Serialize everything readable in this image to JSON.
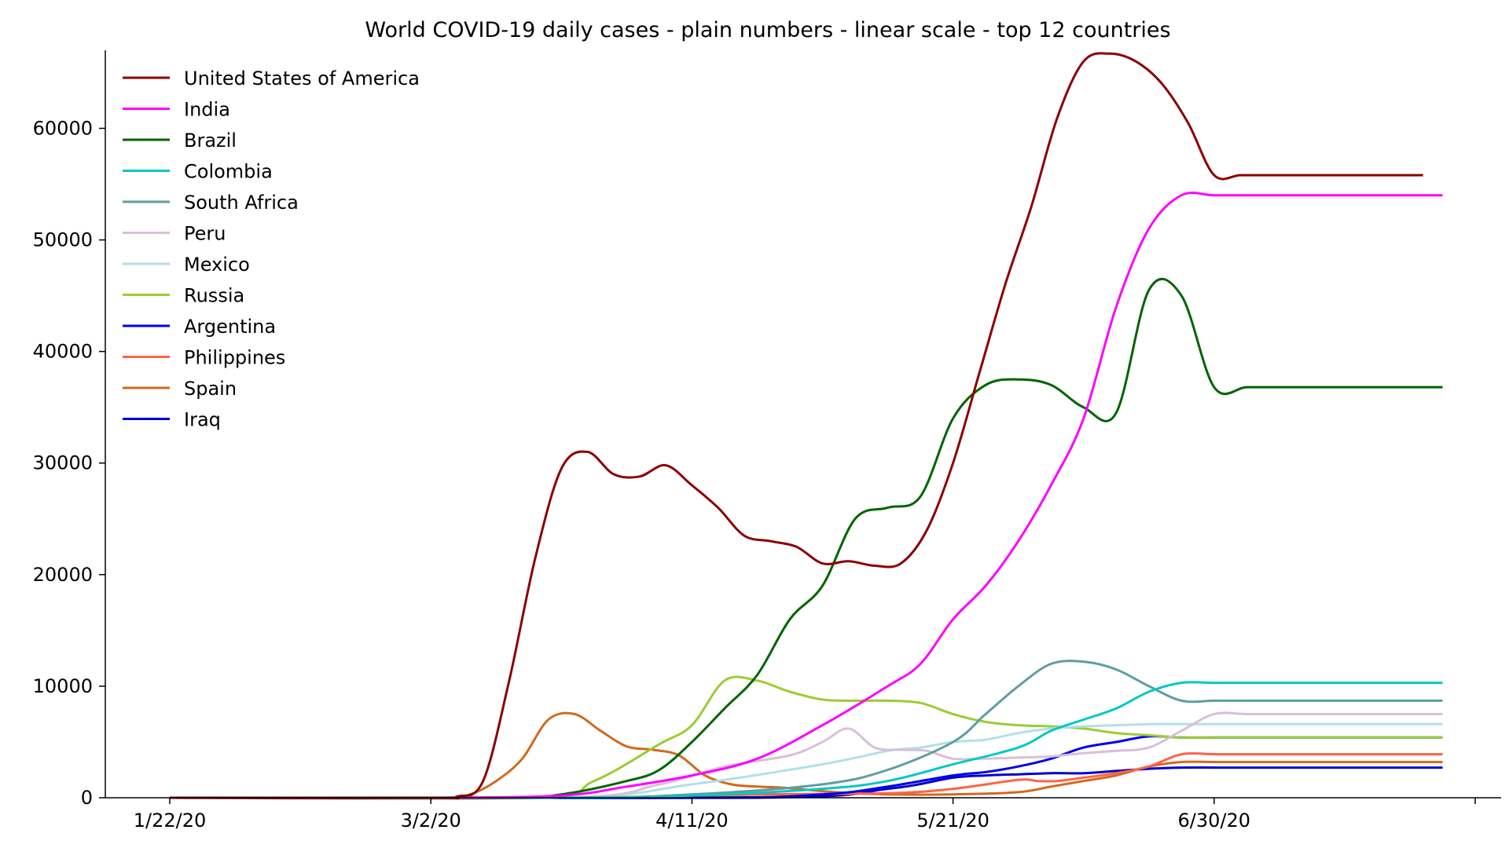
{
  "chart_data": {
    "type": "line",
    "title": "World COVID-19 daily cases - plain numbers - linear scale - top 12 countries",
    "xlabel": "",
    "ylabel": "",
    "x_start": "2020-01-22",
    "x_tick_labels": [
      "1/22/20",
      "3/2/20",
      "4/11/20",
      "5/21/20",
      "6/30/20"
    ],
    "xlim": [
      0,
      200
    ],
    "ylim": [
      0,
      67000
    ],
    "y_ticks": [
      0,
      10000,
      20000,
      30000,
      40000,
      50000,
      60000
    ],
    "legend_position": "top-left",
    "grid": false,
    "series": [
      {
        "name": "United States of America",
        "color": "#8b0000",
        "x": [
          0,
          40,
          44,
          48,
          52,
          56,
          60,
          64,
          68,
          72,
          76,
          80,
          84,
          88,
          92,
          96,
          100,
          104,
          108,
          112,
          116,
          120,
          124,
          128,
          132,
          136,
          140,
          144,
          148,
          152,
          156,
          160,
          164,
          168,
          172,
          176,
          180,
          184,
          188,
          192,
          196
        ],
        "y": [
          0,
          0,
          100,
          1500,
          10500,
          21500,
          29500,
          31000,
          29000,
          28800,
          29800,
          28000,
          26000,
          23500,
          23000,
          22500,
          21000,
          21200,
          20800,
          21000,
          24000,
          30000,
          38000,
          46000,
          53000,
          61000,
          66000,
          66700,
          66000,
          64000,
          60500,
          55800,
          55800,
          55800,
          55800,
          55800,
          55800,
          55800,
          55800,
          55800,
          55800
        ]
      },
      {
        "name": "India",
        "color": "#ff00ff",
        "x": [
          0,
          40,
          60,
          70,
          80,
          90,
          100,
          110,
          115,
          120,
          125,
          130,
          135,
          140,
          145,
          150,
          155,
          160,
          165,
          170,
          175,
          180,
          185,
          190,
          195,
          197
        ],
        "y": [
          0,
          0,
          200,
          1000,
          2000,
          3500,
          6500,
          10000,
          12000,
          16000,
          19000,
          23000,
          28000,
          34000,
          44000,
          51000,
          54000,
          54000,
          54000,
          54000,
          54000,
          54000,
          54000,
          54000,
          54000,
          54000
        ]
      },
      {
        "name": "Brazil",
        "color": "#006400",
        "x": [
          0,
          50,
          60,
          70,
          75,
          80,
          85,
          90,
          95,
          100,
          105,
          110,
          115,
          120,
          125,
          130,
          135,
          140,
          145,
          150,
          155,
          160,
          165,
          170,
          175,
          180,
          185,
          190,
          195
        ],
        "y": [
          0,
          0,
          300,
          1500,
          2500,
          5000,
          8000,
          11000,
          16000,
          19000,
          25000,
          26000,
          27000,
          34000,
          37000,
          37500,
          37000,
          35000,
          34500,
          45500,
          45000,
          36800,
          36800,
          36800,
          36800,
          36800,
          36800,
          36800,
          36800
        ]
      },
      {
        "name": "Colombia",
        "color": "#00c8c8",
        "x": [
          0,
          60,
          80,
          100,
          110,
          120,
          130,
          135,
          140,
          145,
          150,
          155,
          160,
          165,
          170,
          175,
          180,
          185,
          190,
          195
        ],
        "y": [
          0,
          0,
          200,
          800,
          1500,
          3000,
          4500,
          6000,
          7000,
          8000,
          9500,
          10300,
          10300,
          10300,
          10300,
          10300,
          10300,
          10300,
          10300,
          10300
        ]
      },
      {
        "name": "South Africa",
        "color": "#5f9ea0",
        "x": [
          0,
          60,
          80,
          100,
          110,
          120,
          125,
          130,
          135,
          140,
          145,
          150,
          155,
          160,
          165,
          170,
          175,
          180,
          185,
          190,
          195
        ],
        "y": [
          0,
          0,
          300,
          1200,
          2500,
          5000,
          7500,
          10000,
          12000,
          12200,
          11500,
          10000,
          8700,
          8700,
          8700,
          8700,
          8700,
          8700,
          8700,
          8700,
          8700
        ]
      },
      {
        "name": "Peru",
        "color": "#d8bfd8",
        "x": [
          0,
          60,
          75,
          85,
          95,
          100,
          104,
          108,
          112,
          116,
          120,
          125,
          130,
          135,
          140,
          145,
          150,
          155,
          160,
          165,
          170,
          175,
          180,
          185,
          190,
          195
        ],
        "y": [
          0,
          0,
          1200,
          2800,
          3800,
          5000,
          6200,
          4500,
          4300,
          4200,
          3500,
          3500,
          3600,
          3700,
          4000,
          4200,
          4500,
          6000,
          7500,
          7500,
          7500,
          7500,
          7500,
          7500,
          7500,
          7500
        ]
      },
      {
        "name": "Mexico",
        "color": "#b0e0e6",
        "x": [
          0,
          60,
          80,
          100,
          110,
          115,
          120,
          125,
          130,
          135,
          140,
          145,
          150,
          155,
          160,
          165,
          170,
          175,
          180,
          185,
          190,
          195
        ],
        "y": [
          0,
          0,
          1200,
          3000,
          4200,
          4500,
          5000,
          5200,
          5800,
          6200,
          6400,
          6500,
          6600,
          6600,
          6600,
          6600,
          6600,
          6600,
          6600,
          6600,
          6600,
          6600
        ]
      },
      {
        "name": "Russia",
        "color": "#9acd32",
        "x": [
          0,
          55,
          65,
          75,
          80,
          85,
          90,
          95,
          100,
          105,
          110,
          115,
          120,
          125,
          130,
          135,
          140,
          145,
          150,
          155,
          160,
          165,
          170,
          175,
          180,
          185,
          190,
          195
        ],
        "y": [
          0,
          0,
          1500,
          4800,
          6500,
          10500,
          10500,
          9500,
          8800,
          8700,
          8700,
          8500,
          7500,
          6800,
          6500,
          6400,
          6200,
          5800,
          5600,
          5400,
          5400,
          5400,
          5400,
          5400,
          5400,
          5400,
          5400,
          5400
        ]
      },
      {
        "name": "Argentina",
        "color": "#0000ee",
        "x": [
          0,
          80,
          100,
          110,
          120,
          125,
          130,
          135,
          140,
          145,
          150,
          155,
          160,
          165,
          170,
          175,
          180,
          185,
          190,
          195
        ],
        "y": [
          0,
          0,
          300,
          1000,
          2000,
          2300,
          2800,
          3500,
          4500,
          5000,
          5500,
          5400,
          5400,
          5400,
          5400,
          5400,
          5400,
          5400,
          5400,
          5400
        ]
      },
      {
        "name": "Philippines",
        "color": "#ff6347",
        "x": [
          0,
          70,
          90,
          110,
          120,
          130,
          133,
          136,
          140,
          145,
          150,
          155,
          160,
          165,
          170,
          175,
          180,
          185,
          190,
          195
        ],
        "y": [
          0,
          0,
          300,
          400,
          800,
          1600,
          1500,
          1500,
          1800,
          2200,
          2800,
          3900,
          3900,
          3900,
          3900,
          3900,
          3900,
          3900,
          3900,
          3900
        ]
      },
      {
        "name": "Spain",
        "color": "#d2691e",
        "x": [
          0,
          42,
          46,
          50,
          54,
          58,
          62,
          66,
          70,
          74,
          78,
          82,
          86,
          90,
          94,
          98,
          102,
          110,
          120,
          130,
          135,
          140,
          145,
          150,
          155,
          160,
          165,
          170,
          175,
          180,
          185,
          190,
          195
        ],
        "y": [
          0,
          0,
          300,
          1500,
          3500,
          7000,
          7500,
          6000,
          4600,
          4300,
          3800,
          2000,
          1200,
          1000,
          900,
          700,
          500,
          300,
          300,
          500,
          1000,
          1500,
          2000,
          2800,
          3200,
          3200,
          3200,
          3200,
          3200,
          3200,
          3200,
          3200,
          3200
        ]
      },
      {
        "name": "Iraq",
        "color": "#0000cd",
        "x": [
          0,
          90,
          110,
          120,
          125,
          130,
          135,
          140,
          145,
          150,
          155,
          160,
          165,
          170,
          175,
          180,
          185,
          190,
          195
        ],
        "y": [
          0,
          0,
          800,
          1800,
          2000,
          2100,
          2200,
          2200,
          2400,
          2600,
          2700,
          2700,
          2700,
          2700,
          2700,
          2700,
          2700,
          2700,
          2700
        ]
      }
    ]
  }
}
